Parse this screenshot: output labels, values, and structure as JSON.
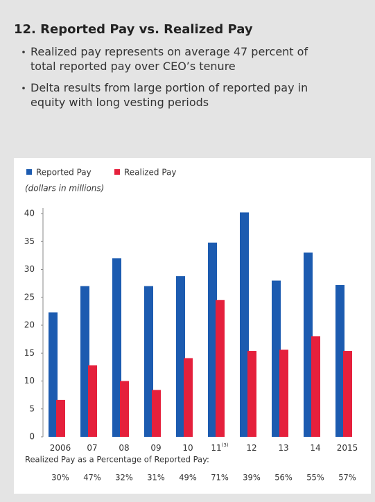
{
  "chart_data": {
    "type": "bar",
    "title": "12. Reported Pay vs. Realized Pay",
    "bullets": [
      [
        "Realized pay represents on average 47 percent of",
        "total reported pay over CEO’s tenure"
      ],
      [
        "Delta results from large portion of reported pay in",
        "equity with long vesting periods"
      ]
    ],
    "y_label": "(dollars in millions)",
    "categories": [
      "2006",
      "07",
      "08",
      "09",
      "10",
      "11",
      "12",
      "13",
      "14",
      "2015"
    ],
    "category_footnotes": [
      {
        "category": "11",
        "mark": "(3)"
      }
    ],
    "series": [
      {
        "name": "Reported Pay",
        "color": "#1c5bb0",
        "values": [
          22.3,
          27,
          32,
          27,
          28.8,
          34.8,
          40.2,
          28,
          33,
          27.2
        ]
      },
      {
        "name": "Realized Pay",
        "color": "#e5203c",
        "values": [
          6.6,
          12.8,
          10,
          8.4,
          14.1,
          24.5,
          15.4,
          15.6,
          18,
          15.4
        ]
      }
    ],
    "ylim": [
      0,
      40
    ],
    "yticks": [
      0,
      5,
      10,
      15,
      20,
      25,
      30,
      35,
      40
    ],
    "grid": false,
    "legend": "top-left",
    "percentages": {
      "label": "Realized Pay as a Percentage of Reported Pay:",
      "values": [
        30,
        47,
        32,
        31,
        49,
        71,
        39,
        56,
        55,
        57
      ],
      "value_labels": [
        "30%",
        "47%",
        "32%",
        "31%",
        "49%",
        "71%",
        "39%",
        "56%",
        "55%",
        "57%"
      ]
    }
  }
}
